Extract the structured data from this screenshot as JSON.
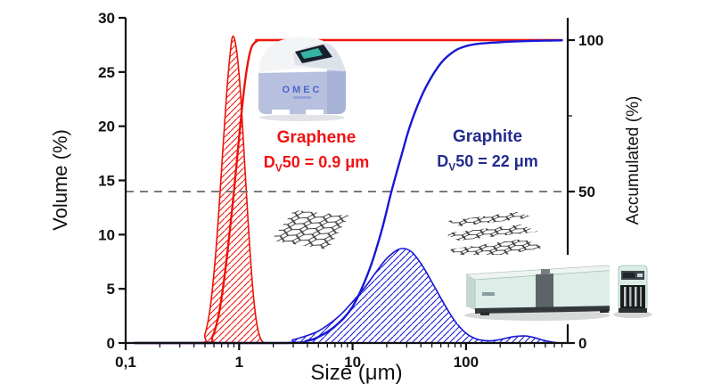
{
  "figure": {
    "background": "#ffffff"
  },
  "annotations": {
    "graphene": {
      "title": "Graphene",
      "dv_prefix": "D",
      "dv_sub": "V",
      "dv_rest": "50 = 0.9 μm",
      "color": "#f11313"
    },
    "graphite": {
      "title": "Graphite",
      "dv_prefix": "D",
      "dv_sub": "V",
      "dv_rest": "50 = 22 μm",
      "color": "#232c8e"
    }
  },
  "illustrations": {
    "benchtop": {
      "name": "OMEC benchtop laser particle size analyzer photo",
      "logo": "OMEC"
    },
    "graphene_sheet": {
      "name": "single-layer graphene lattice illustration"
    },
    "graphite_stack": {
      "name": "stacked graphite layers illustration"
    },
    "laser_analyzer": {
      "name": "laser diffraction particle size analyzer photo"
    },
    "dispersion_unit": {
      "name": "wet dispersion unit photo"
    }
  },
  "chart_data": {
    "type": "line",
    "x_scale": "log",
    "grid": false,
    "x_axis": {
      "label": "Size (μm)",
      "min": 0.1,
      "max": 780,
      "tick_values": [
        0.1,
        1,
        10,
        100
      ],
      "tick_labels": [
        "0,1",
        "1",
        "10",
        "100"
      ]
    },
    "y_left": {
      "label": "Volume (%)",
      "min": 0,
      "max": 30,
      "ticks": [
        0,
        5,
        10,
        15,
        20,
        25,
        30
      ]
    },
    "y_right": {
      "label": "Accumulated (%)",
      "min": 0,
      "max": 100,
      "major_ticks": [
        0,
        50,
        100
      ],
      "minor_ticks": [
        25,
        75
      ]
    },
    "reference_line": {
      "axis": "right",
      "value": 50,
      "style": "dashed",
      "color": "#7a7a7a"
    },
    "series": [
      {
        "name": "Graphene volume distribution",
        "axis": "left",
        "type": "area",
        "color": "#ee1409",
        "hatch": "red",
        "points": [
          [
            0.12,
            0
          ],
          [
            0.45,
            0
          ],
          [
            0.5,
            0.8
          ],
          [
            0.56,
            3.5
          ],
          [
            0.63,
            9
          ],
          [
            0.7,
            16
          ],
          [
            0.77,
            22.5
          ],
          [
            0.83,
            26.5
          ],
          [
            0.88,
            28.3
          ],
          [
            0.95,
            27
          ],
          [
            1.03,
            23
          ],
          [
            1.12,
            16.5
          ],
          [
            1.22,
            10
          ],
          [
            1.32,
            5
          ],
          [
            1.42,
            2
          ],
          [
            1.52,
            0.6
          ],
          [
            1.62,
            0.1
          ],
          [
            1.75,
            0
          ]
        ]
      },
      {
        "name": "Graphene accumulated",
        "axis": "right",
        "type": "line",
        "color": "#ee1409",
        "points": [
          [
            0.12,
            0
          ],
          [
            0.5,
            0
          ],
          [
            0.58,
            2
          ],
          [
            0.65,
            8
          ],
          [
            0.72,
            18
          ],
          [
            0.8,
            32
          ],
          [
            0.9,
            50
          ],
          [
            1.0,
            68
          ],
          [
            1.1,
            83
          ],
          [
            1.2,
            93
          ],
          [
            1.3,
            98
          ],
          [
            1.45,
            99.8
          ],
          [
            1.6,
            100
          ],
          [
            2.5,
            100
          ],
          [
            700,
            100
          ]
        ]
      },
      {
        "name": "Graphite volume distribution",
        "axis": "left",
        "type": "area",
        "color": "#1717d6",
        "hatch": "blue",
        "points": [
          [
            0.12,
            0
          ],
          [
            2.2,
            0
          ],
          [
            3,
            0.3
          ],
          [
            4,
            0.7
          ],
          [
            5,
            1.1
          ],
          [
            6.5,
            1.9
          ],
          [
            8,
            2.7
          ],
          [
            10,
            3.8
          ],
          [
            13,
            5.2
          ],
          [
            16,
            6.5
          ],
          [
            20,
            7.8
          ],
          [
            25,
            8.6
          ],
          [
            29,
            8.7
          ],
          [
            34,
            8.3
          ],
          [
            42,
            7.0
          ],
          [
            52,
            5.3
          ],
          [
            65,
            3.5
          ],
          [
            80,
            2.0
          ],
          [
            100,
            0.9
          ],
          [
            125,
            0.35
          ],
          [
            160,
            0.2
          ],
          [
            200,
            0.32
          ],
          [
            260,
            0.58
          ],
          [
            330,
            0.65
          ],
          [
            400,
            0.5
          ],
          [
            480,
            0.25
          ],
          [
            580,
            0.08
          ],
          [
            700,
            0
          ]
        ]
      },
      {
        "name": "Graphite accumulated",
        "axis": "right",
        "type": "line",
        "color": "#1717d6",
        "points": [
          [
            0.12,
            0
          ],
          [
            2.5,
            0
          ],
          [
            4,
            0.8
          ],
          [
            5,
            2
          ],
          [
            7,
            5.5
          ],
          [
            10,
            12
          ],
          [
            14,
            24
          ],
          [
            18,
            37
          ],
          [
            22,
            50
          ],
          [
            27,
            62
          ],
          [
            32,
            71.5
          ],
          [
            40,
            81
          ],
          [
            50,
            88
          ],
          [
            62,
            93
          ],
          [
            80,
            96.5
          ],
          [
            100,
            98
          ],
          [
            130,
            98.8
          ],
          [
            200,
            99.3
          ],
          [
            300,
            99.6
          ],
          [
            450,
            99.8
          ],
          [
            550,
            99.85
          ],
          [
            700,
            99.9
          ]
        ]
      }
    ]
  }
}
